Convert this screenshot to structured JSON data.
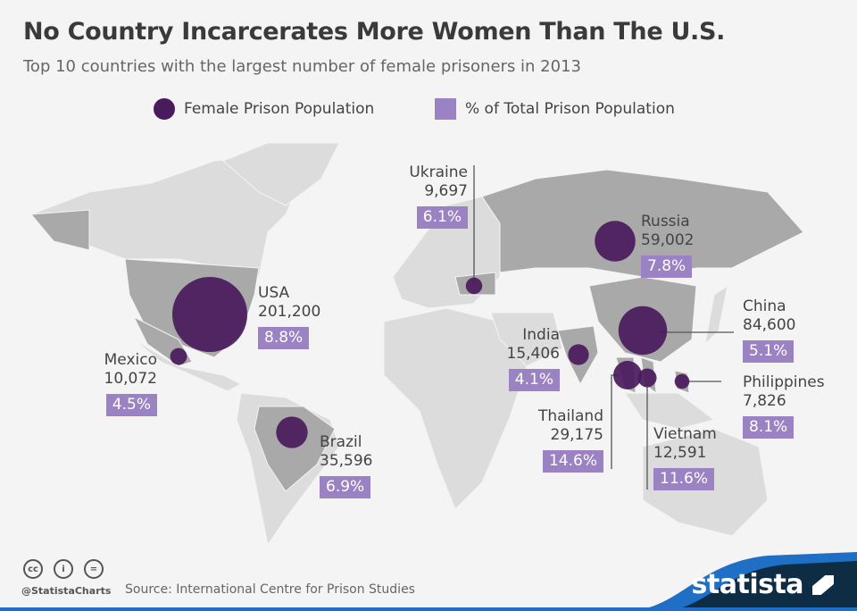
{
  "title": "No Country Incarcerates More Women Than The U.S.",
  "subtitle": "Top 10 countries with the largest number of female prisoners in 2013",
  "legend": {
    "bubble": "Female Prison Population",
    "box": "% of Total Prison Population"
  },
  "colors": {
    "bubble": "#4a1a5c",
    "box": "#9b82c2",
    "map_highlight": "#a9a9a9",
    "map_other": "#dcdcdc",
    "brand": "#0f2c45",
    "accent": "#1f6fc6"
  },
  "chart_data": {
    "type": "bubble-map",
    "series": [
      {
        "name": "Female Prison Population"
      },
      {
        "name": "% of Total Prison Population"
      }
    ],
    "countries": [
      {
        "name": "USA",
        "value": "201,200",
        "number": 201200,
        "pct": "8.8%"
      },
      {
        "name": "China",
        "value": "84,600",
        "number": 84600,
        "pct": "5.1%"
      },
      {
        "name": "Russia",
        "value": "59,002",
        "number": 59002,
        "pct": "7.8%"
      },
      {
        "name": "Brazil",
        "value": "35,596",
        "number": 35596,
        "pct": "6.9%"
      },
      {
        "name": "Thailand",
        "value": "29,175",
        "number": 29175,
        "pct": "14.6%"
      },
      {
        "name": "India",
        "value": "15,406",
        "number": 15406,
        "pct": "4.1%"
      },
      {
        "name": "Vietnam",
        "value": "12,591",
        "number": 12591,
        "pct": "11.6%"
      },
      {
        "name": "Mexico",
        "value": "10,072",
        "number": 10072,
        "pct": "4.5%"
      },
      {
        "name": "Ukraine",
        "value": "9,697",
        "number": 9697,
        "pct": "6.1%"
      },
      {
        "name": "Philippines",
        "value": "7,826",
        "number": 7826,
        "pct": "8.1%"
      }
    ]
  },
  "footer": {
    "handle": "@StatistaCharts",
    "source": "Source: International Centre for Prison Studies",
    "brand": "statista",
    "cc": [
      "cc",
      "i",
      "="
    ]
  }
}
